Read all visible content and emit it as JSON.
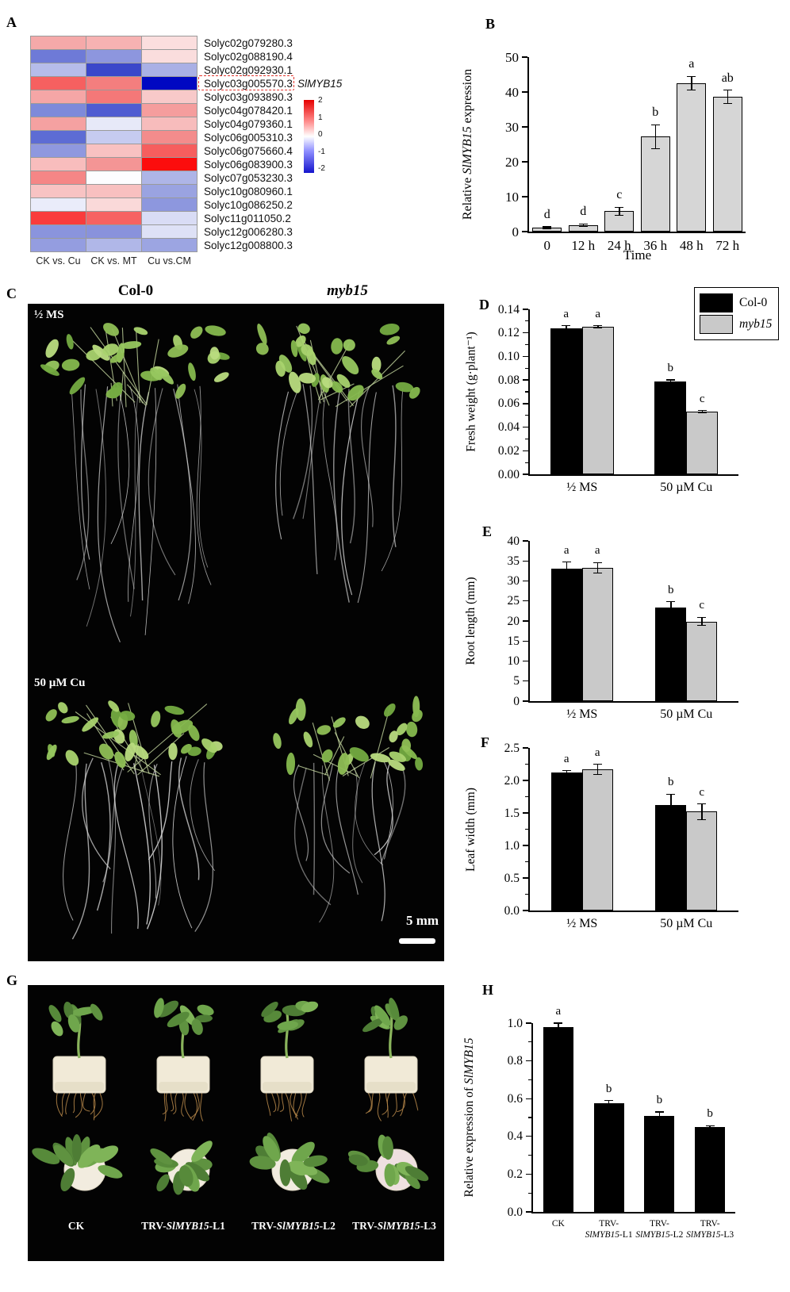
{
  "panels": {
    "a": {
      "label": "A"
    },
    "b": {
      "label": "B"
    },
    "c": {
      "label": "C",
      "genotype_left": "Col-0",
      "genotype_right_parts": [
        {
          "t": "myb15",
          "i": 1
        }
      ],
      "treatment_top": "½ MS",
      "treatment_bottom": "50 µM Cu",
      "scale_text": "5 mm"
    },
    "d": {
      "label": "D"
    },
    "e": {
      "label": "E"
    },
    "f": {
      "label": "F"
    },
    "g": {
      "label": "G",
      "photo_labels": [
        [
          {
            "t": "CK"
          }
        ],
        [
          {
            "t": "TRV-"
          },
          {
            "t": "SlMYB15",
            "i": 1
          },
          {
            "t": "-L1"
          }
        ],
        [
          {
            "t": "TRV-"
          },
          {
            "t": "SlMYB15",
            "i": 1
          },
          {
            "t": "-L2"
          }
        ],
        [
          {
            "t": "TRV-"
          },
          {
            "t": "SlMYB15",
            "i": 1
          },
          {
            "t": "-L3"
          }
        ]
      ]
    },
    "h": {
      "label": "H"
    }
  },
  "chart_data": [
    {
      "id": "heatmap",
      "type": "heatmap",
      "columns": [
        "CK vs. Cu",
        "CK vs. MT",
        "Cu vs.CM"
      ],
      "rows": [
        {
          "gene": "Solyc02g079280.3",
          "colors": [
            "#f5a9a9",
            "#f7b2b2",
            "#fbdede"
          ]
        },
        {
          "gene": "Solyc02g088190.4",
          "colors": [
            "#6e7ad7",
            "#8d96de",
            "#fadddd"
          ]
        },
        {
          "gene": "Solyc02g092930.1",
          "colors": [
            "#b6bcea",
            "#3a47ca",
            "#a9b0e5"
          ]
        },
        {
          "gene": "Solyc03g005570.3",
          "colors": [
            "#f66060",
            "#f47e7e",
            "#0008c2"
          ]
        },
        {
          "gene": "Solyc03g093890.3",
          "colors": [
            "#f5a6a6",
            "#f47878",
            "#f8c9c9"
          ]
        },
        {
          "gene": "Solyc04g078420.1",
          "colors": [
            "#7e8ada",
            "#4f5cd1",
            "#f59d9d"
          ]
        },
        {
          "gene": "Solyc04g079360.1",
          "colors": [
            "#f5a1a1",
            "#e7e9f8",
            "#f7bcbc"
          ]
        },
        {
          "gene": "Solyc06g005310.3",
          "colors": [
            "#5d6cd4",
            "#c6cbf0",
            "#f38c8c"
          ]
        },
        {
          "gene": "Solyc06g075660.4",
          "colors": [
            "#8f98df",
            "#f8c1c1",
            "#f65e5e"
          ]
        },
        {
          "gene": "Solyc06g083900.3",
          "colors": [
            "#f8bdbd",
            "#f49595",
            "#fc0d0d"
          ]
        },
        {
          "gene": "Solyc07g053230.3",
          "colors": [
            "#f58686",
            "#fdfdff",
            "#aeb5e7"
          ]
        },
        {
          "gene": "Solyc10g080960.1",
          "colors": [
            "#f8c3c3",
            "#f8c0c0",
            "#9aa3e1"
          ]
        },
        {
          "gene": "Solyc10g086250.2",
          "colors": [
            "#eaecfa",
            "#fad9d9",
            "#8d97de"
          ]
        },
        {
          "gene": "Solyc11g011050.2",
          "colors": [
            "#f93c3c",
            "#f66262",
            "#d9dcf5"
          ]
        },
        {
          "gene": "Solyc12g006280.3",
          "colors": [
            "#8a94dd",
            "#8992dc",
            "#dee1f6"
          ]
        },
        {
          "gene": "Solyc12g008800.3",
          "colors": [
            "#949de0",
            "#b0b7e8",
            "#9ca5e2"
          ]
        }
      ],
      "highlight_row": 3,
      "highlight_annotation_parts": [
        {
          "t": "SlMYB15",
          "i": 1
        }
      ],
      "colorbar": {
        "ticks": [
          "2",
          "1",
          "0",
          "-1",
          "-2"
        ]
      }
    },
    {
      "id": "b",
      "type": "bar",
      "ylabel_parts": [
        {
          "t": "Relative "
        },
        {
          "t": "SlMYB15",
          "i": 1
        },
        {
          "t": " expression"
        }
      ],
      "xlabel": "Time",
      "ymin": 0,
      "ymax": 50,
      "yticks": [
        {
          "v": 0,
          "l": "0"
        },
        {
          "v": 10,
          "l": "10"
        },
        {
          "v": 20,
          "l": "20"
        },
        {
          "v": 30,
          "l": "30"
        },
        {
          "v": 40,
          "l": "40"
        },
        {
          "v": 50,
          "l": "50"
        }
      ],
      "categories": [
        [
          "0"
        ],
        [
          "12 h"
        ],
        [
          "24 h"
        ],
        [
          "36 h"
        ],
        [
          "48 h"
        ],
        [
          "72 h"
        ]
      ],
      "series": [
        {
          "name": "expression",
          "color": "#d6d6d6",
          "values": [
            1.1,
            1.9,
            5.8,
            27.2,
            42.5,
            38.6
          ],
          "errors": [
            0.2,
            0.3,
            1.2,
            3.4,
            2.0,
            1.9
          ],
          "letters": [
            "d",
            "d",
            "c",
            "b",
            "a",
            "ab"
          ]
        }
      ]
    },
    {
      "id": "d",
      "type": "bar",
      "ylabel_parts": [
        {
          "t": "Fresh weight (g·plant⁻¹)"
        }
      ],
      "ymin": 0,
      "ymax": 0.14,
      "yticks": [
        {
          "v": 0,
          "l": "0.00"
        },
        {
          "v": 0.02,
          "l": "0.02"
        },
        {
          "v": 0.04,
          "l": "0.04"
        },
        {
          "v": 0.06,
          "l": "0.06"
        },
        {
          "v": 0.08,
          "l": "0.08"
        },
        {
          "v": 0.1,
          "l": "0.10"
        },
        {
          "v": 0.12,
          "l": "0.12"
        },
        {
          "v": 0.14,
          "l": "0.14"
        }
      ],
      "categories": [
        [
          "½ MS"
        ],
        [
          "50 µM Cu"
        ]
      ],
      "series": [
        {
          "name": "Col-0",
          "color": "#000000",
          "values": [
            0.124,
            0.079
          ],
          "errors": [
            0.002,
            0.001
          ],
          "letters": [
            "a",
            "b"
          ]
        },
        {
          "name": "myb15",
          "color": "#c9c9c9",
          "values": [
            0.125,
            0.053
          ],
          "errors": [
            0.001,
            0.001
          ],
          "letters": [
            "a",
            "c"
          ]
        }
      ],
      "legend": [
        {
          "label_parts": [
            {
              "t": "Col-0"
            }
          ],
          "color": "#000000"
        },
        {
          "label_parts": [
            {
              "t": "myb15",
              "i": 1
            }
          ],
          "color": "#c9c9c9"
        }
      ]
    },
    {
      "id": "e",
      "type": "bar",
      "ylabel_parts": [
        {
          "t": "Root length (mm)"
        }
      ],
      "ymin": 0,
      "ymax": 40,
      "yticks": [
        {
          "v": 0,
          "l": "0"
        },
        {
          "v": 5,
          "l": "5"
        },
        {
          "v": 10,
          "l": "10"
        },
        {
          "v": 15,
          "l": "15"
        },
        {
          "v": 20,
          "l": "20"
        },
        {
          "v": 25,
          "l": "25"
        },
        {
          "v": 30,
          "l": "30"
        },
        {
          "v": 35,
          "l": "35"
        },
        {
          "v": 40,
          "l": "40"
        }
      ],
      "categories": [
        [
          "½ MS"
        ],
        [
          "50 µM Cu"
        ]
      ],
      "series": [
        {
          "name": "Col-0",
          "color": "#000000",
          "values": [
            33.0,
            23.3
          ],
          "errors": [
            1.7,
            1.5
          ],
          "letters": [
            "a",
            "b"
          ]
        },
        {
          "name": "myb15",
          "color": "#c9c9c9",
          "values": [
            33.3,
            19.9
          ],
          "errors": [
            1.3,
            1.0
          ],
          "letters": [
            "a",
            "c"
          ]
        }
      ]
    },
    {
      "id": "f",
      "type": "bar",
      "ylabel_parts": [
        {
          "t": "Leaf width (mm)"
        }
      ],
      "ymin": 0,
      "ymax": 2.5,
      "yticks": [
        {
          "v": 0,
          "l": "0.0"
        },
        {
          "v": 0.5,
          "l": "0.5"
        },
        {
          "v": 1.0,
          "l": "1.0"
        },
        {
          "v": 1.5,
          "l": "1.5"
        },
        {
          "v": 2.0,
          "l": "2.0"
        },
        {
          "v": 2.5,
          "l": "2.5"
        }
      ],
      "categories": [
        [
          "½ MS"
        ],
        [
          "50 µM Cu"
        ]
      ],
      "series": [
        {
          "name": "Col-0",
          "color": "#000000",
          "values": [
            2.12,
            1.62
          ],
          "errors": [
            0.03,
            0.17
          ],
          "letters": [
            "a",
            "b"
          ]
        },
        {
          "name": "myb15",
          "color": "#c9c9c9",
          "values": [
            2.17,
            1.52
          ],
          "errors": [
            0.08,
            0.12
          ],
          "letters": [
            "a",
            "c"
          ]
        }
      ]
    },
    {
      "id": "h",
      "type": "bar",
      "ylabel_parts": [
        {
          "t": "Relative expression of "
        },
        {
          "t": "SlMYB15",
          "i": 1
        }
      ],
      "ymin": 0,
      "ymax": 1.0,
      "yticks": [
        {
          "v": 0,
          "l": "0.0"
        },
        {
          "v": 0.2,
          "l": "0.2"
        },
        {
          "v": 0.4,
          "l": "0.4"
        },
        {
          "v": 0.6,
          "l": "0.6"
        },
        {
          "v": 0.8,
          "l": "0.8"
        },
        {
          "v": 1.0,
          "l": "1.0"
        }
      ],
      "categories": [
        [
          "CK"
        ],
        [
          "TRV-",
          [
            {
              "t": "SlMYB15",
              "i": 1
            },
            {
              "t": "-L1"
            }
          ]
        ],
        [
          "TRV-",
          [
            {
              "t": "SlMYB15",
              "i": 1
            },
            {
              "t": "-L2"
            }
          ]
        ],
        [
          "TRV-",
          [
            {
              "t": "SlMYB15",
              "i": 1
            },
            {
              "t": "-L3"
            }
          ]
        ]
      ],
      "series": [
        {
          "name": "expression",
          "color": "#000000",
          "values": [
            0.98,
            0.575,
            0.51,
            0.45
          ],
          "errors": [
            0.02,
            0.015,
            0.02,
            0.006
          ],
          "letters": [
            "a",
            "b",
            "b",
            "b"
          ]
        }
      ]
    }
  ]
}
